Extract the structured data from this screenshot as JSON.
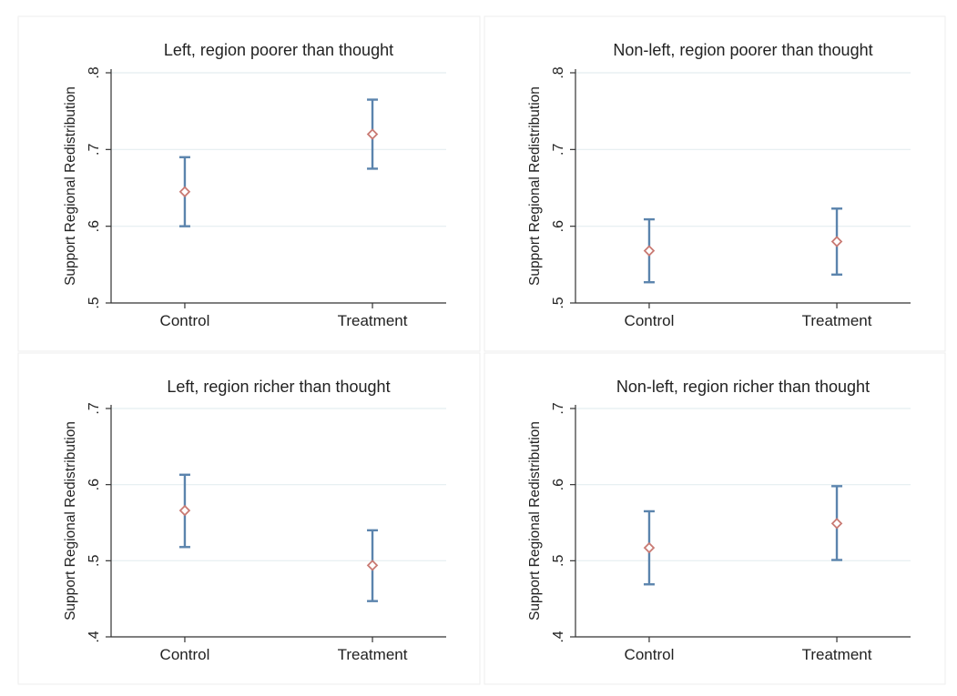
{
  "colors": {
    "errorbar": "#5b84ad",
    "marker": "#c97a73",
    "gridline": "#e4eef0",
    "axis": "#333333",
    "panel_border": "#eeeeee"
  },
  "chart_data": [
    {
      "type": "scatter",
      "subtype": "point-with-error-bars",
      "title": "Left, region poorer than thought",
      "xlabel": "",
      "ylabel": "Support Regional Redistribution",
      "categories": [
        "Control",
        "Treatment"
      ],
      "ylim": [
        0.5,
        0.8
      ],
      "yticks": [
        0.5,
        0.6,
        0.7,
        0.8
      ],
      "ytick_labels": [
        ".5",
        ".6",
        ".7",
        ".8"
      ],
      "values": [
        0.645,
        0.72
      ],
      "ci_low": [
        0.6,
        0.675
      ],
      "ci_high": [
        0.69,
        0.765
      ],
      "grid": true
    },
    {
      "type": "scatter",
      "subtype": "point-with-error-bars",
      "title": "Non-left, region poorer than thought",
      "xlabel": "",
      "ylabel": "Support Regional Redistribution",
      "categories": [
        "Control",
        "Treatment"
      ],
      "ylim": [
        0.5,
        0.8
      ],
      "yticks": [
        0.5,
        0.6,
        0.7,
        0.8
      ],
      "ytick_labels": [
        ".5",
        ".6",
        ".7",
        ".8"
      ],
      "values": [
        0.568,
        0.58
      ],
      "ci_low": [
        0.527,
        0.537
      ],
      "ci_high": [
        0.609,
        0.623
      ],
      "grid": true
    },
    {
      "type": "scatter",
      "subtype": "point-with-error-bars",
      "title": "Left, region richer than thought",
      "xlabel": "",
      "ylabel": "Support Regional Redistribution",
      "categories": [
        "Control",
        "Treatment"
      ],
      "ylim": [
        0.4,
        0.7
      ],
      "yticks": [
        0.4,
        0.5,
        0.6,
        0.7
      ],
      "ytick_labels": [
        ".4",
        ".5",
        ".6",
        ".7"
      ],
      "values": [
        0.566,
        0.494
      ],
      "ci_low": [
        0.518,
        0.447
      ],
      "ci_high": [
        0.613,
        0.54
      ],
      "grid": true
    },
    {
      "type": "scatter",
      "subtype": "point-with-error-bars",
      "title": "Non-left, region richer than thought",
      "xlabel": "",
      "ylabel": "Support Regional Redistribution",
      "categories": [
        "Control",
        "Treatment"
      ],
      "ylim": [
        0.4,
        0.7
      ],
      "yticks": [
        0.4,
        0.5,
        0.6,
        0.7
      ],
      "ytick_labels": [
        ".4",
        ".5",
        ".6",
        ".7"
      ],
      "values": [
        0.517,
        0.549
      ],
      "ci_low": [
        0.469,
        0.501
      ],
      "ci_high": [
        0.565,
        0.598
      ],
      "grid": true
    }
  ]
}
